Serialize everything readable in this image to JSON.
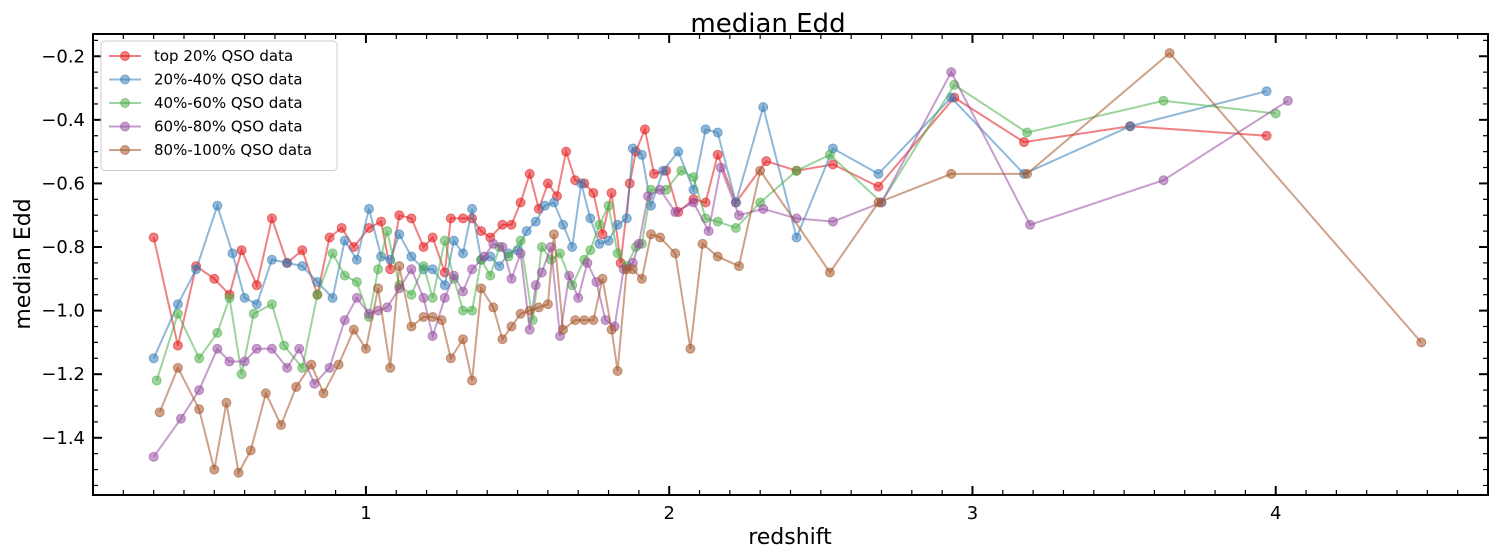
{
  "chart_data": {
    "type": "line",
    "title": "median Edd",
    "xlabel": "redshift",
    "ylabel": "median Edd",
    "xlim": [
      0.1,
      4.7
    ],
    "ylim": [
      -1.58,
      -0.13
    ],
    "xticks": [
      1,
      2,
      3,
      4
    ],
    "xtick_labels": [
      "1",
      "2",
      "3",
      "4"
    ],
    "yticks": [
      -1.4,
      -1.2,
      -1.0,
      -0.8,
      -0.6,
      -0.4,
      -0.2
    ],
    "ytick_labels": [
      "−1.4",
      "−1.2",
      "−1.0",
      "−0.8",
      "−0.6",
      "−0.4",
      "−0.2"
    ],
    "grid": false,
    "legend_position": "top-left",
    "series": [
      {
        "name": "top 20% QSO data",
        "color": "#e41a1c",
        "x": [
          0.3,
          0.38,
          0.44,
          0.5,
          0.55,
          0.59,
          0.64,
          0.69,
          0.74,
          0.79,
          0.84,
          0.88,
          0.92,
          0.96,
          1.01,
          1.05,
          1.08,
          1.11,
          1.15,
          1.19,
          1.22,
          1.26,
          1.28,
          1.32,
          1.35,
          1.38,
          1.41,
          1.45,
          1.48,
          1.51,
          1.54,
          1.57,
          1.6,
          1.63,
          1.66,
          1.69,
          1.72,
          1.75,
          1.78,
          1.81,
          1.84,
          1.87,
          1.89,
          1.92,
          1.95,
          1.99,
          2.03,
          2.08,
          2.12,
          2.16,
          2.22,
          2.32,
          2.42,
          2.54,
          2.69,
          2.94,
          3.17,
          3.52,
          3.97
        ],
        "y": [
          -0.77,
          -1.11,
          -0.86,
          -0.9,
          -0.95,
          -0.81,
          -0.92,
          -0.71,
          -0.85,
          -0.81,
          -0.95,
          -0.77,
          -0.74,
          -0.8,
          -0.74,
          -0.72,
          -0.87,
          -0.7,
          -0.71,
          -0.8,
          -0.77,
          -0.88,
          -0.71,
          -0.71,
          -0.71,
          -0.75,
          -0.77,
          -0.73,
          -0.73,
          -0.66,
          -0.57,
          -0.68,
          -0.6,
          -0.64,
          -0.5,
          -0.59,
          -0.6,
          -0.63,
          -0.76,
          -0.63,
          -0.85,
          -0.6,
          -0.5,
          -0.43,
          -0.57,
          -0.56,
          -0.69,
          -0.65,
          -0.66,
          -0.51,
          -0.66,
          -0.53,
          -0.56,
          -0.54,
          -0.61,
          -0.33,
          -0.47,
          -0.42,
          -0.45
        ]
      },
      {
        "name": "20%-40% QSO data",
        "color": "#377eb8",
        "x": [
          0.3,
          0.38,
          0.44,
          0.51,
          0.56,
          0.6,
          0.64,
          0.69,
          0.74,
          0.79,
          0.84,
          0.89,
          0.93,
          0.97,
          1.01,
          1.05,
          1.08,
          1.11,
          1.15,
          1.19,
          1.22,
          1.26,
          1.29,
          1.32,
          1.35,
          1.38,
          1.41,
          1.44,
          1.47,
          1.5,
          1.53,
          1.56,
          1.59,
          1.62,
          1.65,
          1.68,
          1.71,
          1.74,
          1.77,
          1.8,
          1.83,
          1.86,
          1.88,
          1.91,
          1.94,
          1.98,
          2.03,
          2.08,
          2.12,
          2.16,
          2.22,
          2.31,
          2.42,
          2.54,
          2.69,
          2.93,
          3.17,
          3.52,
          3.97
        ],
        "y": [
          -1.15,
          -0.98,
          -0.87,
          -0.67,
          -0.82,
          -0.96,
          -0.98,
          -0.84,
          -0.85,
          -0.86,
          -0.91,
          -0.96,
          -0.78,
          -0.84,
          -0.68,
          -0.83,
          -0.84,
          -0.76,
          -0.83,
          -0.87,
          -0.87,
          -0.92,
          -0.78,
          -0.82,
          -0.68,
          -0.84,
          -0.83,
          -0.86,
          -0.82,
          -0.81,
          -0.75,
          -0.72,
          -0.67,
          -0.66,
          -0.73,
          -0.8,
          -0.6,
          -0.71,
          -0.79,
          -0.78,
          -0.73,
          -0.71,
          -0.49,
          -0.51,
          -0.67,
          -0.56,
          -0.5,
          -0.62,
          -0.43,
          -0.44,
          -0.66,
          -0.36,
          -0.77,
          -0.49,
          -0.57,
          -0.33,
          -0.57,
          -0.42,
          -0.31
        ]
      },
      {
        "name": "40%-60% QSO data",
        "color": "#4daf4a",
        "x": [
          0.31,
          0.38,
          0.45,
          0.51,
          0.55,
          0.59,
          0.63,
          0.69,
          0.73,
          0.79,
          0.84,
          0.89,
          0.93,
          0.97,
          1.01,
          1.04,
          1.07,
          1.11,
          1.15,
          1.19,
          1.22,
          1.26,
          1.29,
          1.32,
          1.35,
          1.38,
          1.41,
          1.44,
          1.47,
          1.51,
          1.55,
          1.58,
          1.61,
          1.64,
          1.68,
          1.72,
          1.74,
          1.77,
          1.8,
          1.83,
          1.86,
          1.89,
          1.91,
          1.94,
          1.99,
          2.04,
          2.08,
          2.12,
          2.16,
          2.22,
          2.3,
          2.42,
          2.53,
          2.7,
          2.94,
          3.18,
          3.63,
          4.0
        ],
        "y": [
          -1.22,
          -1.01,
          -1.15,
          -1.07,
          -0.96,
          -1.2,
          -1.01,
          -0.98,
          -1.11,
          -1.18,
          -0.95,
          -0.82,
          -0.89,
          -0.91,
          -1.02,
          -0.87,
          -0.75,
          -0.92,
          -0.95,
          -0.86,
          -0.96,
          -0.78,
          -0.9,
          -1.0,
          -1.0,
          -0.84,
          -0.89,
          -0.8,
          -0.83,
          -0.78,
          -1.03,
          -0.8,
          -0.84,
          -0.82,
          -0.92,
          -0.84,
          -0.81,
          -0.73,
          -0.67,
          -0.82,
          -0.86,
          -0.8,
          -0.79,
          -0.62,
          -0.62,
          -0.56,
          -0.58,
          -0.71,
          -0.72,
          -0.74,
          -0.66,
          -0.56,
          -0.51,
          -0.66,
          -0.29,
          -0.44,
          -0.34,
          -0.38
        ]
      },
      {
        "name": "60%-80% QSO data",
        "color": "#984ea3",
        "x": [
          0.3,
          0.39,
          0.45,
          0.51,
          0.55,
          0.6,
          0.64,
          0.69,
          0.74,
          0.78,
          0.83,
          0.88,
          0.93,
          0.97,
          1.01,
          1.04,
          1.07,
          1.11,
          1.15,
          1.19,
          1.22,
          1.26,
          1.29,
          1.32,
          1.35,
          1.39,
          1.42,
          1.45,
          1.48,
          1.51,
          1.54,
          1.56,
          1.58,
          1.61,
          1.64,
          1.67,
          1.7,
          1.73,
          1.76,
          1.79,
          1.82,
          1.85,
          1.88,
          1.9,
          1.93,
          1.97,
          2.02,
          2.08,
          2.13,
          2.17,
          2.23,
          2.31,
          2.42,
          2.54,
          2.7,
          2.93,
          3.19,
          3.63,
          4.04
        ],
        "y": [
          -1.46,
          -1.34,
          -1.25,
          -1.12,
          -1.16,
          -1.16,
          -1.12,
          -1.12,
          -1.18,
          -1.12,
          -1.23,
          -1.18,
          -1.03,
          -0.96,
          -1.01,
          -1.0,
          -0.99,
          -0.93,
          -0.87,
          -0.96,
          -1.08,
          -0.96,
          -0.89,
          -0.94,
          -0.87,
          -0.83,
          -0.79,
          -0.8,
          -0.9,
          -0.82,
          -1.06,
          -0.92,
          -0.88,
          -0.8,
          -1.08,
          -0.89,
          -0.96,
          -0.85,
          -0.91,
          -1.03,
          -1.05,
          -0.87,
          -0.85,
          -0.79,
          -0.64,
          -0.62,
          -0.69,
          -0.66,
          -0.75,
          -0.55,
          -0.7,
          -0.68,
          -0.71,
          -0.72,
          -0.66,
          -0.25,
          -0.73,
          -0.59,
          -0.34
        ]
      },
      {
        "name": "80%-100% QSO data",
        "color": "#a65628",
        "x": [
          0.32,
          0.38,
          0.45,
          0.5,
          0.54,
          0.58,
          0.62,
          0.67,
          0.72,
          0.77,
          0.82,
          0.86,
          0.91,
          0.96,
          1.0,
          1.04,
          1.08,
          1.11,
          1.15,
          1.19,
          1.22,
          1.25,
          1.28,
          1.32,
          1.35,
          1.38,
          1.42,
          1.45,
          1.48,
          1.51,
          1.54,
          1.57,
          1.6,
          1.62,
          1.65,
          1.69,
          1.72,
          1.75,
          1.78,
          1.81,
          1.83,
          1.86,
          1.88,
          1.91,
          1.94,
          1.97,
          2.02,
          2.07,
          2.11,
          2.16,
          2.23,
          2.3,
          2.53,
          2.69,
          2.93,
          3.18,
          3.65,
          4.48
        ],
        "y": [
          -1.32,
          -1.18,
          -1.31,
          -1.5,
          -1.29,
          -1.51,
          -1.44,
          -1.26,
          -1.36,
          -1.24,
          -1.17,
          -1.26,
          -1.17,
          -1.06,
          -1.12,
          -0.93,
          -1.18,
          -0.86,
          -1.05,
          -1.02,
          -1.02,
          -1.03,
          -1.15,
          -1.09,
          -1.22,
          -0.93,
          -0.99,
          -1.09,
          -1.05,
          -1.01,
          -1.0,
          -0.99,
          -0.98,
          -0.76,
          -1.06,
          -1.03,
          -1.03,
          -1.03,
          -0.9,
          -1.06,
          -1.19,
          -0.87,
          -0.87,
          -0.9,
          -0.76,
          -0.77,
          -0.82,
          -1.12,
          -0.79,
          -0.83,
          -0.86,
          -0.56,
          -0.88,
          -0.66,
          -0.57,
          -0.57,
          -0.19,
          -1.1
        ]
      }
    ]
  }
}
